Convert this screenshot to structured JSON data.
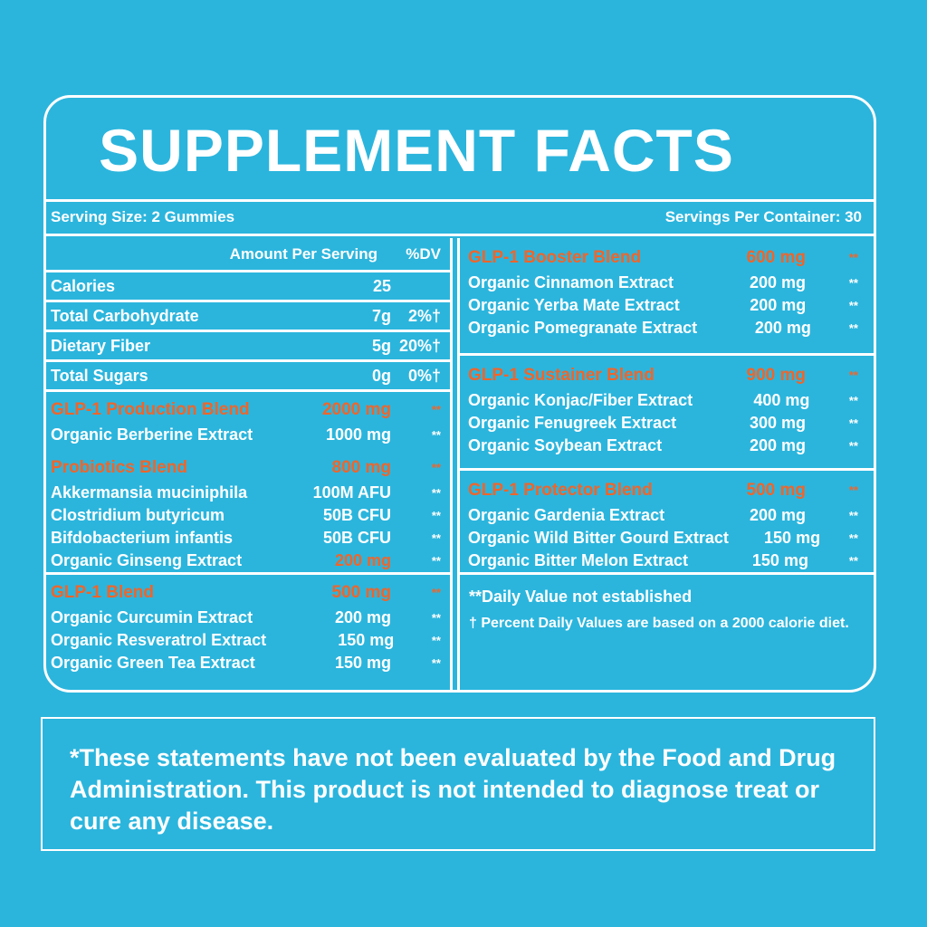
{
  "title": "SUPPLEMENT FACTS",
  "serving_size": "Serving Size: 2 Gummies",
  "servings_per_container": "Servings Per Container: 30",
  "left": {
    "header": {
      "amount": "Amount Per Serving",
      "dv": "%DV"
    },
    "nutrients": [
      {
        "name": "Calories",
        "amount": "25"
      },
      {
        "name": "Total Carbohydrate",
        "amount": "7g",
        "dv": "2%†"
      },
      {
        "name": "Dietary Fiber",
        "amount": "5g",
        "dv": "20%†"
      },
      {
        "name": "Total Sugars",
        "amount": "0g",
        "dv": "0%†"
      }
    ],
    "blend_groups": [
      [
        {
          "name": "GLP-1 Production Blend",
          "amount": "2000 mg",
          "dv": "**",
          "items": [
            {
              "name": "Organic Berberine Extract",
              "amount": "1000 mg",
              "dv": "**"
            }
          ]
        },
        {
          "name": "Probiotics Blend",
          "amount": "800 mg",
          "dv": "**",
          "items": [
            {
              "name": "Akkermansia muciniphila",
              "amount": "100M AFU",
              "dv": "**"
            },
            {
              "name": "Clostridium butyricum",
              "amount": "50B CFU",
              "dv": "**"
            },
            {
              "name": "Bifdobacterium infantis",
              "amount": "50B CFU",
              "dv": "**"
            },
            {
              "name": "Organic Ginseng Extract",
              "amount": "200 mg",
              "dv": "**",
              "highlight": true
            }
          ]
        }
      ],
      [
        {
          "name": "GLP-1 Blend",
          "amount": "500 mg",
          "dv": "**",
          "items": [
            {
              "name": "Organic Curcumin Extract",
              "amount": "200 mg",
              "dv": "**"
            },
            {
              "name": "Organic Resveratrol Extract",
              "amount": "150 mg",
              "dv": "**"
            },
            {
              "name": "Organic Green Tea Extract",
              "amount": "150 mg",
              "dv": "**"
            }
          ]
        }
      ]
    ]
  },
  "right": {
    "blends": [
      {
        "name": "GLP-1 Booster Blend",
        "amount": "600 mg",
        "dv": "**",
        "items": [
          {
            "name": "Organic Cinnamon Extract",
            "amount": "200 mg",
            "dv": "**"
          },
          {
            "name": "Organic Yerba Mate Extract",
            "amount": "200 mg",
            "dv": "**"
          },
          {
            "name": "Organic Pomegranate Extract",
            "amount": "200 mg",
            "dv": "**"
          }
        ]
      },
      {
        "name": "GLP-1 Sustainer Blend",
        "amount": "900 mg",
        "dv": "**",
        "items": [
          {
            "name": "Organic Konjac/Fiber Extract",
            "amount": "400 mg",
            "dv": "**"
          },
          {
            "name": "Organic Fenugreek Extract",
            "amount": "300 mg",
            "dv": "**"
          },
          {
            "name": "Organic Soybean Extract",
            "amount": "200 mg",
            "dv": "**"
          }
        ]
      },
      {
        "name": "GLP-1 Protector Blend",
        "amount": "500 mg",
        "dv": "**",
        "items": [
          {
            "name": "Organic Gardenia Extract",
            "amount": "200 mg",
            "dv": "**"
          },
          {
            "name": "Organic Wild Bitter Gourd Extract",
            "amount": "150 mg",
            "dv": "**"
          },
          {
            "name": "Organic Bitter Melon Extract",
            "amount": "150 mg",
            "dv": "**"
          }
        ]
      }
    ],
    "notes": [
      "**Daily Value not established",
      "† Percent Daily Values are based on a 2000 calorie diet."
    ]
  },
  "disclaimer": "*These statements have not been evaluated by the Food and Drug Administration. This product is not intended to diagnose treat or cure any disease."
}
